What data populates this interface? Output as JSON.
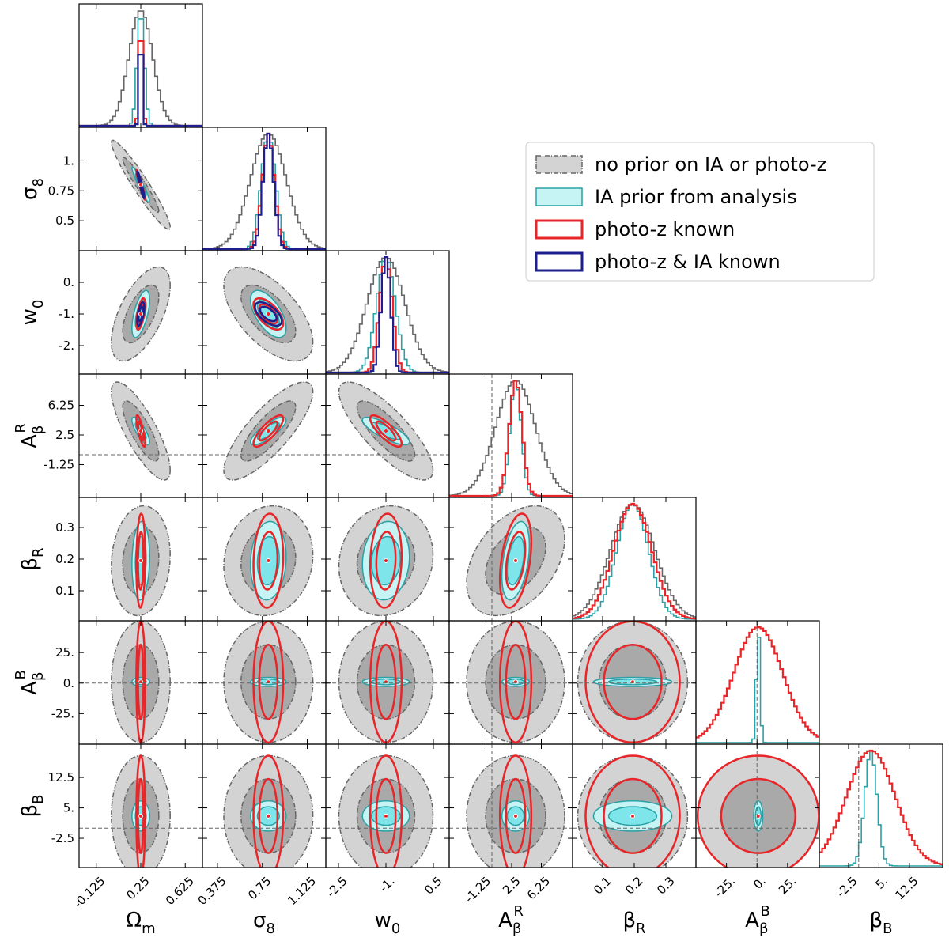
{
  "chart_data": {
    "type": "corner",
    "params": [
      {
        "symbol": "Ω",
        "sub": "m",
        "lim": [
          -0.27,
          0.77
        ],
        "fiducial": 0.25,
        "xticks": [
          -0.125,
          0.25,
          0.625
        ]
      },
      {
        "symbol": "σ",
        "sub": "8",
        "lim": [
          0.25,
          1.28
        ],
        "fiducial": 0.8,
        "xticks": [
          0.375,
          0.75,
          1.125
        ],
        "yticks": [
          0.5,
          0.75,
          {
            "value": 1,
            "label": "1."
          }
        ]
      },
      {
        "symbol": "w",
        "sub": "0",
        "lim": [
          -2.9,
          1.0
        ],
        "fiducial": -1,
        "xticks": [
          -2.5,
          {
            "value": -1,
            "label": "-1."
          },
          0.5
        ],
        "yticks": [
          {
            "value": -2,
            "label": "-2."
          },
          {
            "value": -1,
            "label": "-1."
          },
          {
            "value": 0,
            "label": "0."
          }
        ]
      },
      {
        "symbol": "A",
        "sub": "β",
        "sup": "R",
        "lim": [
          -5.4,
          10.2
        ],
        "fiducial": 3,
        "reference": 0,
        "xticks": [
          -1.25,
          2.5,
          6.25
        ],
        "yticks": [
          -1.25,
          2.5,
          6.25
        ]
      },
      {
        "symbol": "β",
        "sub": "R",
        "lim": [
          0.005,
          0.395
        ],
        "fiducial": 0.195,
        "xticks": [
          0.1,
          0.2,
          0.3
        ],
        "yticks": [
          0.1,
          0.2,
          0.3
        ]
      },
      {
        "symbol": "A",
        "sub": "β",
        "sup": "B",
        "lim": [
          -50,
          51
        ],
        "fiducial": 1,
        "reference": 0,
        "xticks": [
          {
            "value": -25,
            "label": "-25."
          },
          {
            "value": 0,
            "label": "0."
          },
          {
            "value": 25,
            "label": "25."
          }
        ],
        "yticks": [
          {
            "value": -25,
            "label": "-25."
          },
          {
            "value": 0,
            "label": "0."
          },
          {
            "value": 25,
            "label": "25."
          }
        ]
      },
      {
        "symbol": "β",
        "sub": "B",
        "lim": [
          -9.7,
          20.7
        ],
        "fiducial": 3,
        "reference": 0,
        "xticks": [
          -2.5,
          {
            "value": 5,
            "label": "5."
          },
          12.5
        ],
        "yticks": [
          -2.5,
          {
            "value": 5,
            "label": "5."
          },
          12.5
        ]
      }
    ],
    "correlations": [
      [
        1,
        -0.95,
        0.6,
        -0.8,
        0.1,
        0,
        0
      ],
      [
        -0.95,
        1,
        -0.6,
        0.8,
        0.1,
        0,
        0
      ],
      [
        0.6,
        -0.6,
        1,
        -0.8,
        0.1,
        0,
        0
      ],
      [
        -0.8,
        0.8,
        -0.8,
        1,
        0.4,
        0,
        0
      ],
      [
        0.1,
        0.1,
        0.1,
        0.4,
        1,
        0,
        0
      ],
      [
        0,
        0,
        0,
        0,
        0,
        1,
        0
      ],
      [
        0,
        0,
        0,
        0,
        0,
        0,
        1
      ]
    ],
    "series": [
      {
        "name": "no prior on IA or photo-z",
        "color": "#666666",
        "fill": [
          "#d3d3d3",
          "#a9a9a9"
        ],
        "dash": true,
        "sigma": [
          0.1,
          0.15,
          0.6,
          2.5,
          0.07,
          20,
          6
        ]
      },
      {
        "name": "IA prior from analysis",
        "color": "#2aa1a6",
        "fill": [
          "#c6f3f3",
          "#7ee6ea"
        ],
        "sigma": [
          0.03,
          0.06,
          0.3,
          0.7,
          0.05,
          1.5,
          1.5
        ]
      },
      {
        "name": "photo-z known",
        "color": "#e8262a",
        "sigma": [
          0.015,
          0.05,
          0.2,
          0.8,
          0.06,
          20,
          6
        ]
      },
      {
        "name": "photo-z & IA known",
        "color": "#1e1e8c",
        "sigma": [
          0.012,
          0.045,
          0.15,
          null,
          null,
          null,
          null
        ]
      }
    ],
    "legend": "upper right"
  }
}
